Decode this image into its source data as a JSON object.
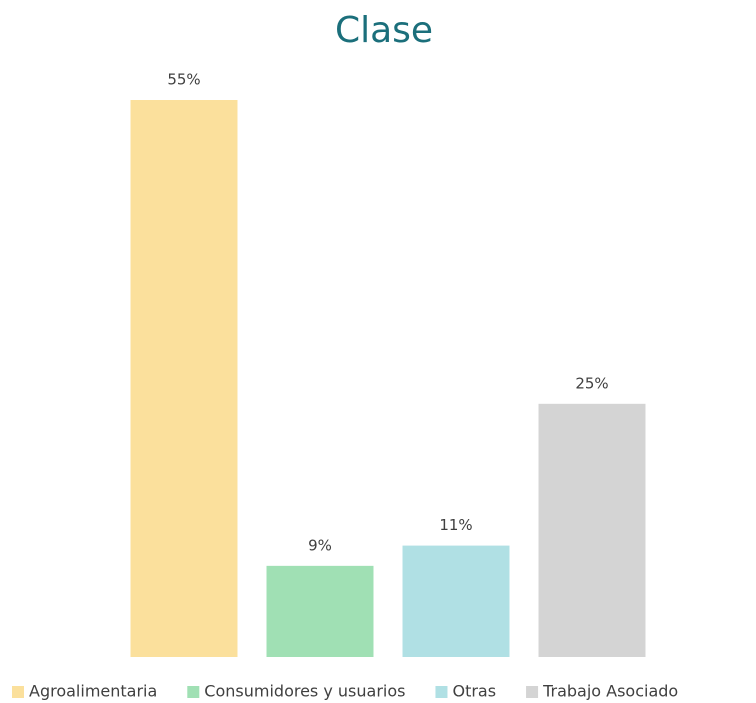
{
  "chart_data": {
    "type": "bar",
    "title": "Clase",
    "categories": [
      "Agroalimentaria",
      "Consumidores y usuarios",
      "Otras",
      "Trabajo Asociado"
    ],
    "values": [
      55,
      9,
      11,
      25
    ],
    "value_labels": [
      "55%",
      "9%",
      "11%",
      "25%"
    ],
    "colors": [
      "#fbe09c",
      "#a0e0b4",
      "#b0e0e4",
      "#d4d4d4"
    ],
    "legend": "bottom"
  }
}
